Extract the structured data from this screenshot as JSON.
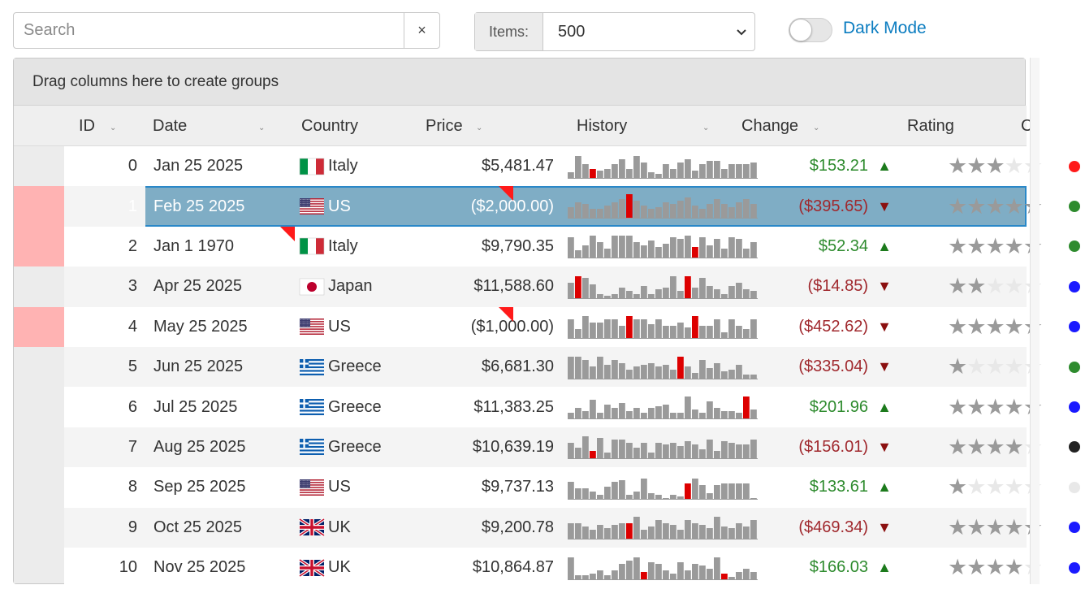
{
  "toolbar": {
    "search_placeholder": "Search",
    "search_value": "",
    "clear_symbol": "×",
    "items_label": "Items:",
    "items_value": "500",
    "dark_mode_label": "Dark Mode",
    "dark_mode_on": false
  },
  "grid": {
    "group_panel_text": "Drag columns here to create groups",
    "columns": [
      {
        "key": "id",
        "label": "ID"
      },
      {
        "key": "date",
        "label": "Date"
      },
      {
        "key": "country",
        "label": "Country"
      },
      {
        "key": "price",
        "label": "Price"
      },
      {
        "key": "history",
        "label": "History"
      },
      {
        "key": "change",
        "label": "Change"
      },
      {
        "key": "rating",
        "label": "Rating"
      },
      {
        "key": "color",
        "label": "C"
      }
    ],
    "rows": [
      {
        "id": "0",
        "date": "Jan 25 2025",
        "country": "Italy",
        "flag": "italy",
        "price": "$5,481.47",
        "price_flag": false,
        "change": "$153.21",
        "dir": "up",
        "rating": 3,
        "dot": "#ff1a1a",
        "row_flag": false,
        "history": [
          4,
          14,
          9,
          6,
          5,
          6,
          9,
          12,
          6,
          14,
          10,
          4,
          3,
          9,
          6,
          10,
          12,
          5,
          9,
          11,
          11,
          6,
          9,
          9,
          9,
          10
        ],
        "hl": [
          3
        ]
      },
      {
        "id": "1",
        "date": "Feb 25 2025",
        "country": "US",
        "flag": "us",
        "price": "($2,000.00)",
        "price_flag": true,
        "change": "($395.65)",
        "dir": "down",
        "rating": 5,
        "dot": "#2e8b2e",
        "row_flag": true,
        "history": [
          7,
          10,
          9,
          6,
          6,
          8,
          10,
          12,
          15,
          11,
          8,
          6,
          7,
          10,
          9,
          11,
          13,
          8,
          6,
          9,
          12,
          9,
          7,
          10,
          12,
          9
        ],
        "hl": [
          8
        ]
      },
      {
        "id": "2",
        "date": "Jan 1 1970",
        "country": "Italy",
        "flag": "italy",
        "price": "$9,790.35",
        "price_flag": false,
        "change": "$52.34",
        "dir": "up",
        "rating": 5,
        "dot": "#2e8b2e",
        "row_flag": true,
        "history": [
          13,
          5,
          8,
          14,
          10,
          6,
          14,
          14,
          14,
          10,
          8,
          11,
          7,
          9,
          13,
          12,
          14,
          7,
          13,
          8,
          12,
          6,
          13,
          12,
          6,
          10
        ],
        "hl": [
          17
        ]
      },
      {
        "id": "3",
        "date": "Apr 25 2025",
        "country": "Japan",
        "flag": "japan",
        "price": "$11,588.60",
        "price_flag": false,
        "change": "($14.85)",
        "dir": "down",
        "rating": 2,
        "dot": "#1a1aff",
        "row_flag": false,
        "history": [
          10,
          14,
          13,
          9,
          3,
          2,
          3,
          7,
          5,
          3,
          8,
          3,
          6,
          7,
          14,
          5,
          14,
          7,
          13,
          8,
          6,
          3,
          8,
          10,
          6,
          5
        ],
        "hl": [
          1,
          16
        ]
      },
      {
        "id": "4",
        "date": "May 25 2025",
        "country": "US",
        "flag": "us",
        "price": "($1,000.00)",
        "price_flag": true,
        "change": "($452.62)",
        "dir": "down",
        "rating": 5,
        "dot": "#1a1aff",
        "row_flag": true,
        "history": [
          12,
          6,
          14,
          10,
          10,
          12,
          12,
          8,
          14,
          12,
          12,
          9,
          12,
          8,
          8,
          10,
          7,
          14,
          8,
          8,
          12,
          4,
          12,
          8,
          6,
          12
        ],
        "hl": [
          8,
          17
        ]
      },
      {
        "id": "5",
        "date": "Jun 25 2025",
        "country": "Greece",
        "flag": "greece",
        "price": "$6,681.30",
        "price_flag": false,
        "change": "($335.04)",
        "dir": "down",
        "rating": 1,
        "dot": "#2e8b2e",
        "row_flag": false,
        "history": [
          14,
          14,
          12,
          8,
          14,
          9,
          12,
          10,
          6,
          8,
          9,
          10,
          8,
          9,
          6,
          14,
          8,
          4,
          12,
          7,
          10,
          5,
          6,
          9,
          3,
          3
        ],
        "hl": [
          15
        ]
      },
      {
        "id": "6",
        "date": "Jul 25 2025",
        "country": "Greece",
        "flag": "greece",
        "price": "$11,383.25",
        "price_flag": false,
        "change": "$201.96",
        "dir": "up",
        "rating": 5,
        "dot": "#1a1aff",
        "row_flag": false,
        "history": [
          4,
          7,
          5,
          12,
          4,
          9,
          7,
          10,
          5,
          7,
          4,
          7,
          8,
          9,
          4,
          4,
          14,
          6,
          4,
          11,
          7,
          5,
          5,
          4,
          14,
          6
        ],
        "hl": [
          24
        ]
      },
      {
        "id": "7",
        "date": "Aug 25 2025",
        "country": "Greece",
        "flag": "greece",
        "price": "$10,639.19",
        "price_flag": false,
        "change": "($156.01)",
        "dir": "down",
        "rating": 4,
        "dot": "#222222",
        "row_flag": false,
        "history": [
          10,
          7,
          14,
          5,
          13,
          4,
          12,
          12,
          10,
          7,
          10,
          4,
          10,
          9,
          10,
          8,
          11,
          9,
          6,
          12,
          5,
          11,
          10,
          9,
          9,
          12
        ],
        "hl": [
          3
        ]
      },
      {
        "id": "8",
        "date": "Sep 25 2025",
        "country": "US",
        "flag": "us",
        "price": "$9,737.13",
        "price_flag": false,
        "change": "$133.61",
        "dir": "up",
        "rating": 1,
        "dot": "#e8e8e8",
        "row_flag": false,
        "history": [
          11,
          7,
          7,
          5,
          3,
          8,
          11,
          12,
          3,
          5,
          13,
          4,
          3,
          1,
          3,
          2,
          10,
          13,
          9,
          4,
          9,
          10,
          10,
          10,
          10,
          1
        ],
        "hl": [
          16
        ]
      },
      {
        "id": "9",
        "date": "Oct 25 2025",
        "country": "UK",
        "flag": "uk",
        "price": "$9,200.78",
        "price_flag": false,
        "change": "($469.34)",
        "dir": "down",
        "rating": 5,
        "dot": "#1a1aff",
        "row_flag": false,
        "history": [
          10,
          10,
          8,
          6,
          9,
          7,
          9,
          10,
          10,
          14,
          6,
          8,
          12,
          10,
          9,
          6,
          12,
          10,
          9,
          7,
          14,
          8,
          7,
          10,
          8,
          12
        ],
        "hl": [
          8
        ]
      },
      {
        "id": "10",
        "date": "Nov 25 2025",
        "country": "UK",
        "flag": "uk",
        "price": "$10,864.87",
        "price_flag": false,
        "change": "$166.03",
        "dir": "up",
        "rating": 4,
        "dot": "#1a1aff",
        "row_flag": false,
        "history": [
          14,
          3,
          3,
          4,
          6,
          3,
          6,
          10,
          12,
          14,
          5,
          11,
          10,
          6,
          4,
          11,
          6,
          10,
          9,
          7,
          14,
          4,
          2,
          5,
          7,
          5
        ],
        "hl": [
          10,
          21
        ]
      }
    ]
  },
  "colors": {
    "accent": "#0a7cc0",
    "selected_row": "#7fadc5",
    "selection_border": "#2a88c8",
    "flagged_row_header": "#ffb3b3",
    "positive": "#2e8b2e",
    "negative": "#a0282d",
    "history_bar": "#9a9a9a",
    "history_highlight": "#dd0000"
  }
}
